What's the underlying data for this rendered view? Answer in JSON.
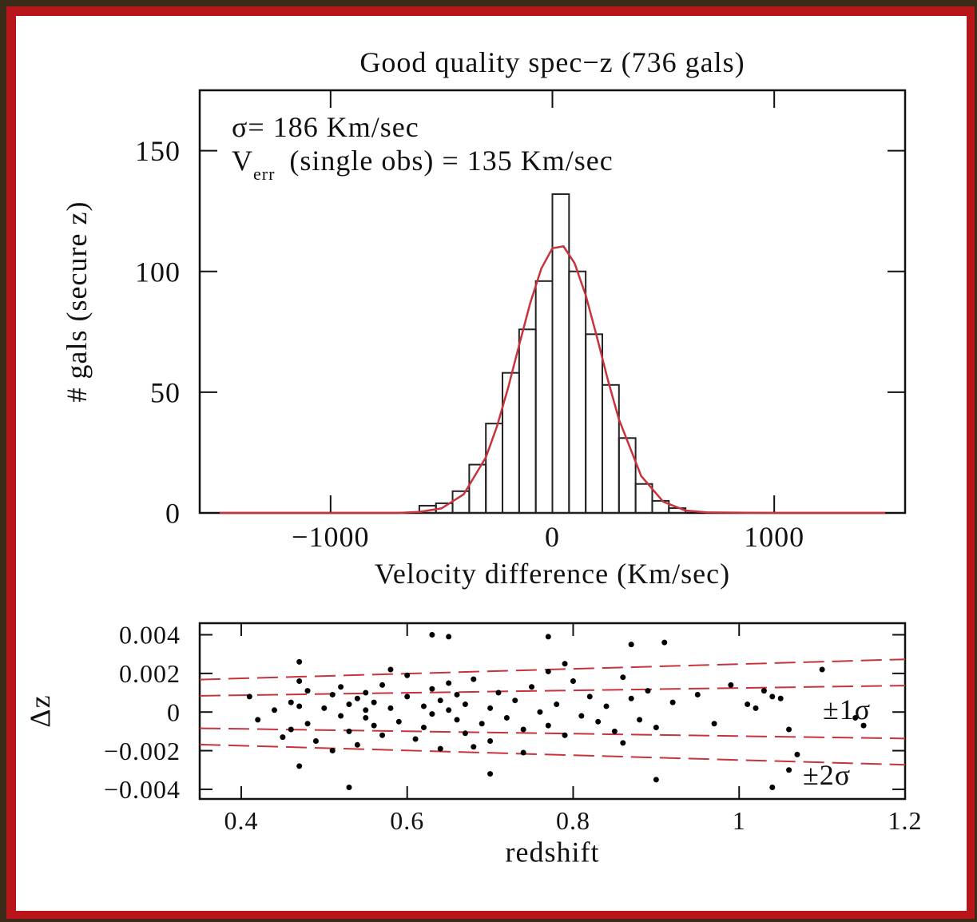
{
  "chart_data": [
    {
      "type": "histogram",
      "title": "Good quality spec−z (736 gals)",
      "x_label": "Velocity difference (Km/sec)",
      "y_label": "# gals (secure z)",
      "annotations": [
        {
          "text": "σ= 186 Km/sec"
        },
        {
          "text": "V",
          "sub": "err",
          "rest": "(single obs) = 135 Km/sec"
        }
      ],
      "bins": [
        -600,
        -525,
        -450,
        -375,
        -300,
        -225,
        -150,
        -75,
        0,
        75,
        150,
        225,
        300,
        375,
        450,
        525,
        600
      ],
      "counts": [
        3,
        4,
        9,
        20,
        37,
        58,
        76,
        96,
        132,
        100,
        74,
        53,
        31,
        12,
        5,
        2
      ],
      "color": "#222222",
      "fit": {
        "color": "#c8323c",
        "x": [
          -1500,
          -1000,
          -700,
          -600,
          -500,
          -400,
          -300,
          -250,
          -200,
          -150,
          -100,
          -50,
          0,
          50,
          100,
          150,
          200,
          250,
          300,
          400,
          500,
          600,
          700,
          1000,
          1500
        ],
        "values": [
          0,
          0,
          0,
          0.4,
          1.9,
          7.7,
          23,
          35.8,
          51.7,
          69.5,
          86.9,
          101.2,
          109.6,
          110.4,
          103.4,
          90.2,
          73.1,
          55.1,
          38.7,
          15.3,
          4.6,
          1.0,
          0.2,
          0,
          0
        ]
      },
      "xlim": [
        -1590,
        1590
      ],
      "ylim": [
        0,
        175
      ],
      "xticks": [
        {
          "value": -1000,
          "label": "−1000"
        },
        0,
        1000
      ],
      "yticks": [
        0,
        50,
        100,
        150
      ]
    },
    {
      "type": "scatter",
      "x_label": "redshift",
      "y_label": "Δz",
      "color": "#000000",
      "x": [
        0.41,
        0.42,
        0.44,
        0.45,
        0.46,
        0.46,
        0.47,
        0.47,
        0.48,
        0.48,
        0.49,
        0.5,
        0.51,
        0.52,
        0.52,
        0.53,
        0.53,
        0.54,
        0.54,
        0.55,
        0.55,
        0.55,
        0.56,
        0.56,
        0.57,
        0.57,
        0.58,
        0.59,
        0.6,
        0.61,
        0.62,
        0.62,
        0.63,
        0.63,
        0.64,
        0.64,
        0.65,
        0.65,
        0.66,
        0.66,
        0.67,
        0.67,
        0.68,
        0.69,
        0.7,
        0.7,
        0.71,
        0.72,
        0.73,
        0.74,
        0.75,
        0.76,
        0.77,
        0.77,
        0.78,
        0.79,
        0.8,
        0.81,
        0.82,
        0.83,
        0.84,
        0.85,
        0.86,
        0.87,
        0.88,
        0.89,
        0.9,
        0.92,
        0.95,
        0.97,
        0.99,
        1.01,
        1.02,
        1.03,
        1.04,
        1.05,
        1.06,
        1.07,
        1.1,
        1.14,
        1.15,
        0.63,
        0.65,
        0.77,
        0.87,
        0.91,
        0.53,
        1.04,
        0.9,
        0.7,
        0.47,
        0.47,
        0.51,
        0.6,
        0.74,
        0.58,
        0.68,
        0.79,
        0.86,
        1.06
      ],
      "values": [
        0.0008,
        -0.0004,
        0.0001,
        -0.0013,
        0.0005,
        -0.0009,
        0.0016,
        0.0003,
        -0.0006,
        0.0011,
        -0.0015,
        0.0002,
        0.0009,
        -0.0002,
        0.0013,
        -0.001,
        0.0004,
        0.0007,
        -0.0017,
        -0.0003,
        0.001,
        0.0001,
        -0.0007,
        0.0005,
        0.0014,
        -0.0012,
        0.0002,
        -0.0005,
        0.0008,
        -0.0014,
        0.0003,
        -0.0008,
        0.0012,
        -0.0001,
        0.0006,
        -0.0019,
        0.0001,
        0.0015,
        -0.0004,
        0.0009,
        -0.0011,
        0.0004,
        0.0017,
        -0.0006,
        0.0002,
        -0.0015,
        0.001,
        -0.0003,
        0.0006,
        -0.0009,
        0.0013,
        0,
        0.0021,
        -0.0007,
        0.0004,
        -0.0012,
        0.0016,
        -0.0002,
        0.0008,
        -0.0005,
        0.0003,
        -0.001,
        0.0018,
        0.0007,
        -0.0004,
        0.0011,
        -0.0008,
        0.0005,
        0.0009,
        -0.0006,
        0.0014,
        0.0004,
        0.0002,
        0.0011,
        0.0008,
        0.0007,
        -0.0009,
        -0.0022,
        0.0022,
        -0.0003,
        -0.0007,
        0.004,
        0.0039,
        0.0039,
        0.0035,
        0.0036,
        -0.0039,
        -0.0039,
        -0.0035,
        -0.0032,
        -0.0028,
        0.0026,
        -0.002,
        0.0019,
        -0.0021,
        0.0022,
        -0.0018,
        0.0025,
        -0.0016,
        -0.003
      ],
      "bands": [
        {
          "label": "±1σ",
          "color": "#c8323c",
          "x": [
            0.35,
            1.2
          ],
          "upper": [
            0.00084,
            0.00137
          ],
          "lower": [
            -0.00084,
            -0.00137
          ]
        },
        {
          "label": "±2σ",
          "color": "#c8323c",
          "x": [
            0.35,
            1.2
          ],
          "upper": [
            0.00168,
            0.00273
          ],
          "lower": [
            -0.00168,
            -0.00273
          ]
        }
      ],
      "xlim": [
        0.35,
        1.2
      ],
      "ylim": [
        -0.0045,
        0.0046
      ],
      "xticks": [
        0.4,
        0.6,
        0.8,
        1,
        1.2
      ],
      "yticks": [
        0.004,
        0.002,
        0,
        {
          "value": -0.002,
          "label": "−0.002"
        },
        {
          "value": -0.004,
          "label": "−0.004"
        }
      ]
    }
  ]
}
